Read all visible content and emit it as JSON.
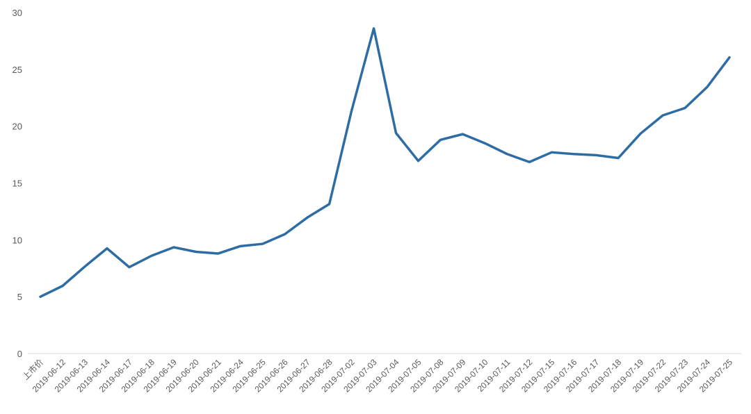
{
  "chart_data": {
    "type": "line",
    "title": "",
    "xlabel": "",
    "ylabel": "",
    "ylim": [
      0,
      30
    ],
    "yticks": [
      0,
      5,
      10,
      15,
      20,
      25,
      30
    ],
    "grid": false,
    "legend": "none",
    "line_color": "#2E6DA4",
    "categories": [
      "上市价",
      "2019-06-12",
      "2019-06-13",
      "2019-06-14",
      "2019-06-17",
      "2019-06-18",
      "2019-06-19",
      "2019-06-20",
      "2019-06-21",
      "2019-06-24",
      "2019-06-25",
      "2019-06-26",
      "2019-06-27",
      "2019-06-28",
      "2019-07-02",
      "2019-07-03",
      "2019-07-04",
      "2019-07-05",
      "2019-07-08",
      "2019-07-09",
      "2019-07-10",
      "2019-07-11",
      "2019-07-12",
      "2019-07-15",
      "2019-07-16",
      "2019-07-17",
      "2019-07-18",
      "2019-07-19",
      "2019-07-22",
      "2019-07-23",
      "2019-07-24",
      "2019-07-25"
    ],
    "series": [
      {
        "values": [
          5.0,
          5.95,
          7.65,
          9.25,
          7.6,
          8.6,
          9.35,
          8.95,
          8.8,
          9.45,
          9.65,
          10.5,
          11.95,
          13.15,
          21.35,
          28.6,
          19.4,
          16.95,
          18.8,
          19.3,
          18.5,
          17.55,
          16.85,
          17.7,
          17.55,
          17.45,
          17.2,
          19.35,
          20.95,
          21.6,
          23.45,
          26.05
        ]
      }
    ]
  }
}
